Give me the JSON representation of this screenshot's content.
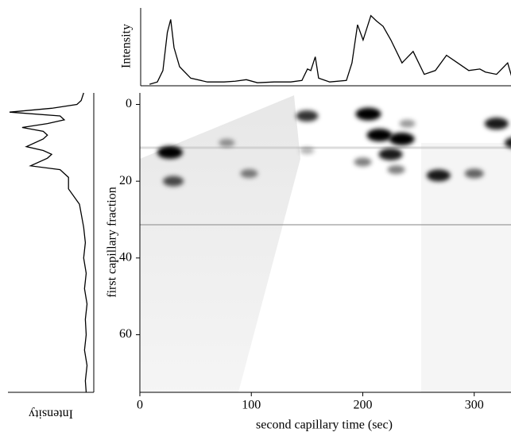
{
  "chart_data": [
    {
      "type": "heatmap",
      "xlabel": "second capillary time (sec)",
      "ylabel": "first capillary fraction",
      "xlim": [
        0,
        333
      ],
      "ylim": [
        -3,
        75
      ],
      "y_reversed": true,
      "xticks": [
        0,
        100,
        200,
        300
      ],
      "yticks": [
        0,
        20,
        40,
        60
      ],
      "color": "#000000",
      "spots": {
        "x": [
          27,
          30,
          78,
          98,
          150,
          205,
          215,
          235,
          225,
          268,
          320,
          338,
          300,
          230,
          240,
          150,
          200
        ],
        "y": [
          12.5,
          20,
          10,
          18,
          3,
          2.5,
          8,
          9,
          13,
          18.5,
          5,
          10,
          18,
          17,
          5,
          12,
          15
        ],
        "values": [
          1,
          0.7,
          0.4,
          0.5,
          0.8,
          1,
          1,
          1,
          0.9,
          0.9,
          0.9,
          0.9,
          0.6,
          0.5,
          0.4,
          0.3,
          0.5
        ]
      }
    },
    {
      "type": "line",
      "ylabel": "Intensity",
      "xlim": [
        0,
        333
      ],
      "ylim": [
        0,
        1
      ],
      "color": "#000000",
      "x": [
        8,
        15,
        20,
        24,
        27,
        30,
        35,
        45,
        60,
        75,
        85,
        95,
        105,
        120,
        135,
        145,
        150,
        153,
        157,
        160,
        170,
        185,
        190,
        195,
        200,
        207,
        212,
        218,
        225,
        235,
        245,
        255,
        265,
        275,
        285,
        295,
        305,
        310,
        320,
        330,
        335
      ],
      "values": [
        0.02,
        0.05,
        0.2,
        0.7,
        0.87,
        0.5,
        0.25,
        0.1,
        0.05,
        0.05,
        0.06,
        0.08,
        0.04,
        0.05,
        0.05,
        0.07,
        0.22,
        0.2,
        0.38,
        0.1,
        0.05,
        0.07,
        0.3,
        0.8,
        0.6,
        0.92,
        0.85,
        0.78,
        0.6,
        0.3,
        0.45,
        0.15,
        0.2,
        0.4,
        0.3,
        0.2,
        0.22,
        0.18,
        0.15,
        0.3,
        0.05
      ]
    },
    {
      "type": "line-vertical",
      "xlabel": "Intensity",
      "ylim": [
        -3,
        75
      ],
      "xlim": [
        0,
        1
      ],
      "color": "#000000",
      "y": [
        -3,
        -1,
        0,
        1,
        2,
        3,
        4,
        5,
        6,
        7,
        8,
        9,
        11,
        12,
        13,
        14,
        16,
        17,
        19,
        22,
        26,
        32,
        36,
        40,
        44,
        48,
        52,
        56,
        60,
        64,
        68,
        72,
        75
      ],
      "values": [
        0.12,
        0.15,
        0.2,
        0.5,
        1.0,
        0.4,
        0.35,
        0.55,
        0.85,
        0.6,
        0.55,
        0.6,
        0.8,
        0.6,
        0.5,
        0.55,
        0.75,
        0.4,
        0.3,
        0.3,
        0.17,
        0.12,
        0.1,
        0.12,
        0.09,
        0.11,
        0.08,
        0.1,
        0.09,
        0.11,
        0.08,
        0.1,
        0.09
      ]
    }
  ]
}
